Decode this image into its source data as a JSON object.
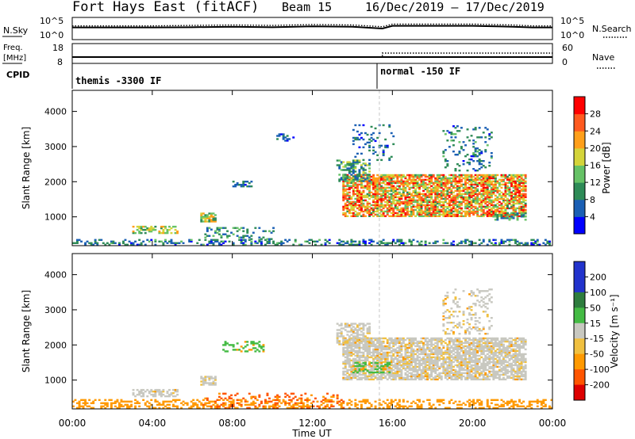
{
  "header": {
    "radar": "Fort Hays East (fitACF)",
    "beam": "Beam 15",
    "dates": "16/Dec/2019 – 17/Dec/2019"
  },
  "colors": {
    "text": "#000000",
    "dashed_marker": "#c8c8c8",
    "velocity_ground": "#c8c8c0"
  },
  "chart_data": [
    {
      "type": "line",
      "panel": "noise-search",
      "left_label": "N.Sky",
      "left_ticks": [
        "10^5",
        "10^0"
      ],
      "right_ticks": [
        "10^5",
        "10^0"
      ],
      "legend": [
        "N.Search"
      ],
      "xlim": [
        0,
        24
      ],
      "series": [
        {
          "name": "N.Sky",
          "style": "solid",
          "x": [
            0,
            2,
            4,
            6,
            8,
            10,
            12,
            14,
            15.5,
            16,
            18,
            20,
            22,
            23,
            24
          ],
          "y": [
            0.55,
            0.55,
            0.55,
            0.56,
            0.58,
            0.56,
            0.6,
            0.58,
            0.5,
            0.62,
            0.62,
            0.62,
            0.58,
            0.55,
            0.55
          ]
        },
        {
          "name": "N.Search",
          "style": "dotted",
          "x": [
            0,
            2,
            4,
            6,
            8,
            10,
            12,
            14,
            15.5,
            16,
            18,
            20,
            22,
            23,
            24
          ],
          "y": [
            0.62,
            0.62,
            0.62,
            0.64,
            0.66,
            0.64,
            0.68,
            0.66,
            0.58,
            0.7,
            0.7,
            0.7,
            0.66,
            0.62,
            0.62
          ]
        }
      ]
    },
    {
      "type": "line",
      "panel": "frequency-nave",
      "left_label": "Freq. [MHz]",
      "left_ticks": [
        "18",
        "8"
      ],
      "right_ticks": [
        "60",
        "0"
      ],
      "legend": [
        "Nave"
      ],
      "xlim": [
        0,
        24
      ],
      "series": [
        {
          "name": "Freq",
          "style": "solid",
          "x": [
            0,
            24
          ],
          "y": [
            11.2,
            11.2
          ]
        },
        {
          "name": "Nave",
          "style": "dotted",
          "x": [
            0,
            15.5,
            15.5,
            24
          ],
          "y": [
            11.2,
            11.2,
            13.2,
            13.2
          ]
        }
      ]
    },
    {
      "type": "table",
      "panel": "cpid",
      "label": "CPID",
      "segments": [
        {
          "start": 0,
          "end": 15.35,
          "text": "themis -3300 IF"
        },
        {
          "start": 15.35,
          "end": 24,
          "text": "normal -150 IF"
        }
      ]
    },
    {
      "type": "heatmap",
      "panel": "power",
      "ylabel": "Slant Range [km]",
      "ylim": [
        180,
        4600
      ],
      "yticks": [
        1000,
        2000,
        3000,
        4000
      ],
      "xlim": [
        0,
        24
      ],
      "colorbar": {
        "label": "Power [dB]",
        "ticks": [
          "4",
          "8",
          "12",
          "16",
          "20",
          "24",
          "28"
        ],
        "range": [
          0,
          30
        ]
      },
      "clusters": [
        {
          "t0": 0.0,
          "t1": 24.0,
          "r0": 190,
          "r1": 360,
          "v0": 4,
          "v1": 14,
          "density": 0.35
        },
        {
          "t0": 3.0,
          "t1": 5.2,
          "r0": 520,
          "r1": 720,
          "v0": 10,
          "v1": 22,
          "density": 0.6
        },
        {
          "t0": 6.4,
          "t1": 7.1,
          "r0": 850,
          "r1": 1120,
          "v0": 10,
          "v1": 24,
          "density": 0.7
        },
        {
          "t0": 6.6,
          "t1": 10.0,
          "r0": 350,
          "r1": 700,
          "v0": 6,
          "v1": 16,
          "density": 0.25
        },
        {
          "t0": 8.0,
          "t1": 9.0,
          "r0": 1850,
          "r1": 2000,
          "v0": 4,
          "v1": 12,
          "density": 0.4
        },
        {
          "t0": 10.0,
          "t1": 11.0,
          "r0": 3150,
          "r1": 3350,
          "v0": 4,
          "v1": 12,
          "density": 0.3
        },
        {
          "t0": 13.5,
          "t1": 22.7,
          "r0": 1000,
          "r1": 2200,
          "v0": 12,
          "v1": 30,
          "density": 0.75
        },
        {
          "t0": 13.2,
          "t1": 14.8,
          "r0": 2000,
          "r1": 2600,
          "v0": 6,
          "v1": 18,
          "density": 0.5
        },
        {
          "t0": 14.0,
          "t1": 16.0,
          "r0": 2600,
          "r1": 3600,
          "v0": 4,
          "v1": 12,
          "density": 0.15
        },
        {
          "t0": 18.5,
          "t1": 21.0,
          "r0": 2300,
          "r1": 3600,
          "v0": 4,
          "v1": 14,
          "density": 0.2
        },
        {
          "t0": 21.0,
          "t1": 22.7,
          "r0": 900,
          "r1": 1100,
          "v0": 6,
          "v1": 16,
          "density": 0.5
        }
      ]
    },
    {
      "type": "heatmap",
      "panel": "velocity",
      "ylabel": "Slant Range [km]",
      "ylim": [
        180,
        4600
      ],
      "yticks": [
        1000,
        2000,
        3000,
        4000
      ],
      "xlim": [
        0,
        24
      ],
      "xticks": [
        "00:00",
        "04:00",
        "08:00",
        "12:00",
        "16:00",
        "20:00",
        "00:00"
      ],
      "xlabel": "Time UT",
      "colorbar": {
        "label": "Velocity [m s⁻¹]",
        "ticks": [
          "200",
          "100",
          "50",
          "15",
          "-15",
          "-50",
          "-100",
          "-200"
        ]
      },
      "clusters": [
        {
          "t0": 0.0,
          "t1": 24.0,
          "r0": 190,
          "r1": 420,
          "v": "-50",
          "density": 0.35
        },
        {
          "t0": 6.5,
          "t1": 13.5,
          "r0": 190,
          "r1": 600,
          "v": "-100",
          "density": 0.2
        },
        {
          "t0": 3.0,
          "t1": 5.2,
          "r0": 520,
          "r1": 720,
          "v": "15",
          "density": 0.6
        },
        {
          "t0": 6.4,
          "t1": 7.1,
          "r0": 850,
          "r1": 1120,
          "v": "15",
          "density": 0.7
        },
        {
          "t0": 7.5,
          "t1": 9.5,
          "r0": 1800,
          "r1": 2100,
          "v": "50",
          "density": 0.3
        },
        {
          "t0": 13.5,
          "t1": 22.7,
          "r0": 1000,
          "r1": 2200,
          "v": "15",
          "density": 0.75
        },
        {
          "t0": 13.2,
          "t1": 14.8,
          "r0": 2000,
          "r1": 2600,
          "v": "15",
          "density": 0.5
        },
        {
          "t0": 14.0,
          "t1": 15.8,
          "r0": 1200,
          "r1": 1500,
          "v": "50",
          "density": 0.4
        },
        {
          "t0": 18.5,
          "t1": 21.0,
          "r0": 2300,
          "r1": 3600,
          "v": "15",
          "density": 0.2
        }
      ]
    }
  ]
}
